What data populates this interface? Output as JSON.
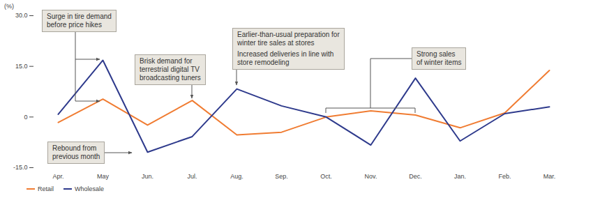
{
  "chart_data": {
    "type": "line",
    "y_label": "(%)",
    "categories": [
      "Apr.",
      "May",
      "Jun.",
      "Jul.",
      "Aug.",
      "Sep.",
      "Oct.",
      "Nov.",
      "Dec.",
      "Jan.",
      "Feb.",
      "Mar."
    ],
    "series": [
      {
        "name": "Retail",
        "color": "#f07c32",
        "values": [
          -1.6,
          5.3,
          -2.4,
          4.9,
          -5.3,
          -4.5,
          0.0,
          1.8,
          0.6,
          -3.2,
          1.2,
          13.8
        ]
      },
      {
        "name": "Wholesale",
        "color": "#2e3a8c",
        "values": [
          0.8,
          16.8,
          -10.4,
          -5.8,
          8.3,
          3.3,
          0.0,
          -8.3,
          11.5,
          -7.1,
          1.0,
          3.0
        ]
      }
    ],
    "ylim": [
      -15,
      30
    ],
    "yticks": [
      {
        "value": -15,
        "label": "-15.0"
      },
      0,
      {
        "value": 15,
        "label": "15.0"
      },
      {
        "value": 30,
        "label": "30.0"
      }
    ],
    "grid": false,
    "legend": "bottom-left",
    "annotations": [
      {
        "text": [
          "Surge in tire demand\nbefore price hikes"
        ],
        "x": [
          "May"
        ]
      },
      {
        "text": [
          "Brisk demand for\nterrestrial digital TV\nbroadcasting tuners"
        ],
        "x": [
          "Jul."
        ]
      },
      {
        "text": [
          "Rebound from\nprevious month"
        ],
        "x": [
          "Jun."
        ]
      },
      {
        "text": [
          "Earlier-than-usual preparation for\nwinter tire sales at stores",
          "Increased deliveries in line with\nstore remodeling"
        ],
        "x": [
          "Aug."
        ]
      },
      {
        "text": [
          "Strong sales\nof winter items"
        ],
        "x": [
          "Oct.",
          "Nov.",
          "Dec."
        ]
      }
    ]
  }
}
